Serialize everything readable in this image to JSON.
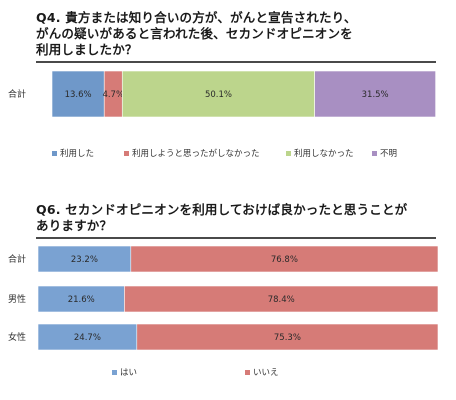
{
  "chart_data": [
    {
      "type": "bar",
      "orientation": "horizontal-stacked-percent",
      "title": "Q4. 貴方または知り合いの方が、がんと宣告されたり、\nがんの疑いがあると言われた後、セカンドオピニオンを\n利用しましたか？",
      "categories": [
        "合計"
      ],
      "series": [
        {
          "name": "利用した",
          "values": [
            13.6
          ],
          "labels": [
            "13.6%"
          ],
          "color": "#6f98c9"
        },
        {
          "name": "利用しようと思ったがしなかった",
          "values": [
            4.7
          ],
          "labels": [
            "4.7%"
          ],
          "color": "#d67b77"
        },
        {
          "name": "利用しなかった",
          "values": [
            50.1
          ],
          "labels": [
            "50.1%"
          ],
          "color": "#bcd58c"
        },
        {
          "name": "不明",
          "values": [
            31.5
          ],
          "labels": [
            "31.5%"
          ],
          "color": "#a88fc2"
        }
      ],
      "xlim": [
        0,
        100
      ],
      "legend": "bottom"
    },
    {
      "type": "bar",
      "orientation": "horizontal-stacked-percent",
      "title": "Q6. セカンドオピニオンを利用しておけば良かったと思うことが\nありますか？",
      "categories": [
        "合計",
        "男性",
        "女性"
      ],
      "series": [
        {
          "name": "はい",
          "values": [
            23.2,
            21.6,
            24.7
          ],
          "labels": [
            "23.2%",
            "21.6%",
            "24.7%"
          ],
          "color": "#7aa2d2"
        },
        {
          "name": "いいえ",
          "values": [
            76.8,
            78.4,
            75.3
          ],
          "labels": [
            "76.8%",
            "78.4%",
            "75.3%"
          ],
          "color": "#d67b77"
        }
      ],
      "xlim": [
        0,
        100
      ],
      "legend": "bottom"
    }
  ]
}
